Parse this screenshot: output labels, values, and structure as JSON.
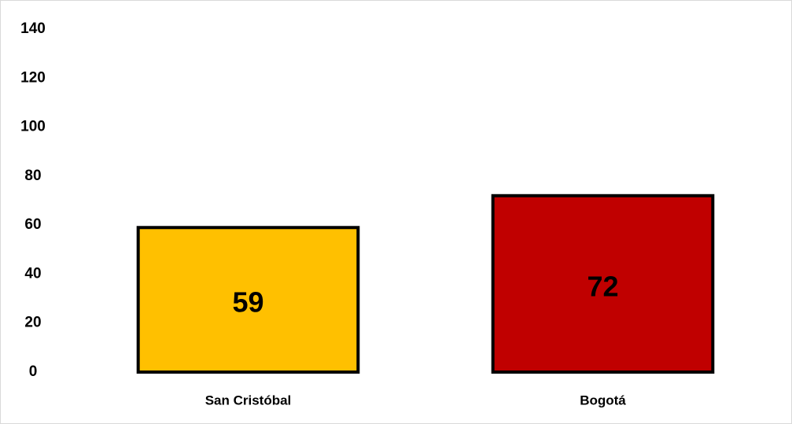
{
  "chart_data": {
    "type": "bar",
    "categories": [
      "San Cristóbal",
      "Bogotá"
    ],
    "values": [
      59,
      72
    ],
    "colors": [
      "#ffc000",
      "#c00000"
    ],
    "ylim": [
      0,
      140
    ],
    "yticks": [
      0,
      20,
      40,
      60,
      80,
      100,
      120,
      140
    ],
    "grid": false
  }
}
